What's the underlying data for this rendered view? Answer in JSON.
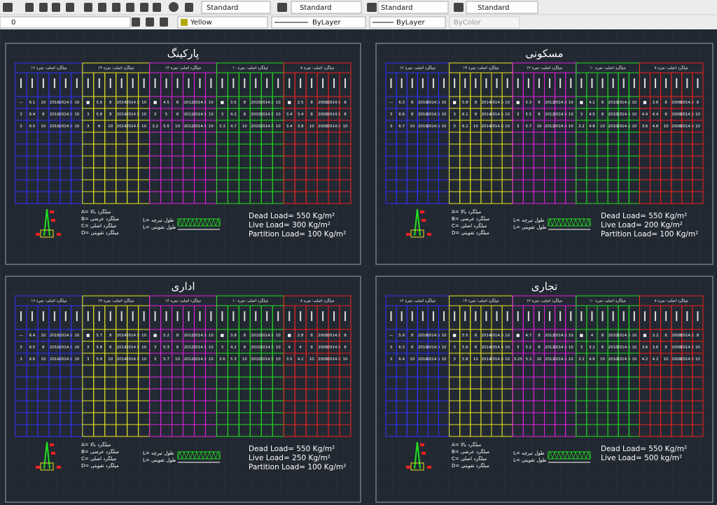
{
  "toolbar": {
    "text_style": "Standard",
    "dim_style": "Standard",
    "table_style": "Standard",
    "mleader_style": "Standard",
    "layer": "0",
    "color": "Yellow",
    "linetype": "ByLayer",
    "lineweight": "ByLayer",
    "plot_style": "ByColor"
  },
  "panels": [
    {
      "title": "پارکینگ",
      "loads": [
        "Dead Load= 550 Kg/m²",
        "Live Load= 300 Kg/m²",
        "Partition Load= 100 Kg/m²"
      ],
      "legend": [
        "A= میلگرد بالا",
        "B= میلگرد عرضی",
        "C= میلگرد اصلی",
        "D= میلگرد تقویتی"
      ],
      "lengths": [
        "L= طول تیرچه",
        "L= طول تقویتی"
      ],
      "groups": [
        {
          "header": "میلگرد اصلی: نمره ۱۶",
          "color": "#3030ff",
          "rows": [
            [
              "—",
              "6.1",
              "10",
              "2016",
              "2014.5",
              "10"
            ],
            [
              "3",
              "6.4",
              "8",
              "2016",
              "2014.5",
              "10"
            ],
            [
              "3",
              "6.5",
              "10",
              "2016",
              "2014.5",
              "10"
            ]
          ]
        },
        {
          "header": "میلگرد اصلی: نمره ۱۴",
          "color": "#e6e620",
          "rows": [
            [
              "■",
              "5.6",
              "8",
              "2014",
              "2014.5",
              "10"
            ],
            [
              "3",
              "5.8",
              "8",
              "2014",
              "2014.5",
              "10"
            ],
            [
              "3",
              "6",
              "10",
              "2014",
              "2014.5",
              "10"
            ]
          ]
        },
        {
          "header": "میلگرد اصلی: نمره ۱۲",
          "color": "#e020e0",
          "rows": [
            [
              "■",
              "4.5",
              "8",
              "2012",
              "2014.5",
              "10"
            ],
            [
              "3",
              "5",
              "8",
              "2012",
              "2014.5",
              "10"
            ],
            [
              "3.2",
              "5.5",
              "10",
              "2012",
              "2014.5",
              "10"
            ]
          ]
        },
        {
          "header": "میلگرد اصلی: نمره ۱۰",
          "color": "#20e020",
          "rows": [
            [
              "■",
              "3.5",
              "8",
              "2010",
              "2014.5",
              "10"
            ],
            [
              "3",
              "4.2",
              "8",
              "2010",
              "2014.5",
              "10"
            ],
            [
              "3.3",
              "4.7",
              "10",
              "2010",
              "2014.5",
              "10"
            ]
          ]
        },
        {
          "header": "میلگرد اصلی: نمره ۸",
          "color": "#f02020",
          "rows": [
            [
              "■",
              "2.5",
              "8",
              "2008",
              "2014.5",
              "8"
            ],
            [
              "3.4",
              "3.4",
              "8",
              "2008",
              "2014.5",
              "8"
            ],
            [
              "3.4",
              "3.8",
              "10",
              "2008",
              "2014.5",
              "10"
            ]
          ]
        }
      ]
    },
    {
      "title": "مسکونی",
      "loads": [
        "Dead Load= 550 Kg/m²",
        "Live Load= 200 Kg/m²",
        "Partition Load= 100 Kg/m²"
      ],
      "legend": [
        "A= میلگرد بالا",
        "B= میلگرد عرضی",
        "C= میلگرد اصلی",
        "D= میلگرد تقویتی"
      ],
      "lengths": [
        "L= طول تیرچه",
        "L= طول تقویتی"
      ],
      "groups": [
        {
          "header": "میلگرد اصلی: نمره ۱۶",
          "color": "#3030ff",
          "rows": [
            [
              "—",
              "6.3",
              "8",
              "2016",
              "2014.5",
              "10"
            ],
            [
              "3",
              "6.6",
              "8",
              "2016",
              "2014.5",
              "10"
            ],
            [
              "3",
              "6.7",
              "10",
              "2016",
              "2014.5",
              "10"
            ]
          ]
        },
        {
          "header": "میلگرد اصلی: نمره ۱۴",
          "color": "#e6e620",
          "rows": [
            [
              "■",
              "5.8",
              "8",
              "2014",
              "2014.5",
              "10"
            ],
            [
              "3",
              "6.1",
              "8",
              "2014",
              "2014.5",
              "10"
            ],
            [
              "3",
              "6.2",
              "10",
              "2014",
              "2014.5",
              "10"
            ]
          ]
        },
        {
          "header": "میلگرد اصلی: نمره ۱۲",
          "color": "#e020e0",
          "rows": [
            [
              "■",
              "5.3",
              "8",
              "2012",
              "2014.5",
              "10"
            ],
            [
              "3",
              "5.5",
              "8",
              "2012",
              "2014.5",
              "10"
            ],
            [
              "3",
              "5.7",
              "10",
              "2012",
              "2014.5",
              "10"
            ]
          ]
        },
        {
          "header": "میلگرد اصلی: نمره ۱۰",
          "color": "#20e020",
          "rows": [
            [
              "■",
              "4.1",
              "8",
              "2010",
              "2014.5",
              "10"
            ],
            [
              "3",
              "4.5",
              "8",
              "2010",
              "2014.5",
              "10"
            ],
            [
              "3.2",
              "4.8",
              "10",
              "2010",
              "2014.5",
              "10"
            ]
          ]
        },
        {
          "header": "میلگرد اصلی: نمره ۸",
          "color": "#f02020",
          "rows": [
            [
              "■",
              "3.6",
              "8",
              "2008",
              "2014.5",
              "8"
            ],
            [
              "4.4",
              "4.4",
              "8",
              "2008",
              "2014.5",
              "10"
            ],
            [
              "3.6",
              "4.8",
              "10",
              "2008",
              "2014.5",
              "10"
            ]
          ]
        }
      ]
    },
    {
      "title": "اداری",
      "loads": [
        "Dead Load= 550 Kg/m²",
        "Live Load= 250 Kg/m²",
        "Partition Load= 100 Kg/m²"
      ],
      "legend": [
        "A= میلگرد بالا",
        "B= میلگرد عرضی",
        "C= میلگرد اصلی",
        "D= میلگرد تقویتی"
      ],
      "lengths": [
        "L= طول تیرچه",
        "L= طول تقویتی"
      ],
      "groups": [
        {
          "header": "میلگرد اصلی: نمره ۱۶",
          "color": "#3030ff",
          "rows": [
            [
              "—",
              "6.4",
              "10",
              "2016",
              "2014.5",
              "10"
            ],
            [
              "3",
              "6.5",
              "8",
              "2016",
              "2014.5",
              "10"
            ],
            [
              "3",
              "6.6",
              "10",
              "2016",
              "2014.5",
              "10"
            ]
          ]
        },
        {
          "header": "میلگرد اصلی: نمره ۱۴",
          "color": "#e6e620",
          "rows": [
            [
              "■",
              "5.7",
              "8",
              "2014",
              "2014.5",
              "10"
            ],
            [
              "3",
              "5.8",
              "8",
              "2014",
              "2014.5",
              "10"
            ],
            [
              "3",
              "5.9",
              "10",
              "2014",
              "2014.5",
              "10"
            ]
          ]
        },
        {
          "header": "میلگرد اصلی: نمره ۱۲",
          "color": "#e020e0",
          "rows": [
            [
              "■",
              "5.2",
              "8",
              "2012",
              "2014.5",
              "10"
            ],
            [
              "3",
              "5.3",
              "8",
              "2012",
              "2014.5",
              "10"
            ],
            [
              "3",
              "5.7",
              "10",
              "2012",
              "2014.5",
              "10"
            ]
          ]
        },
        {
          "header": "میلگرد اصلی: نمره ۱۰",
          "color": "#20e020",
          "rows": [
            [
              "■",
              "3.8",
              "8",
              "2010",
              "2014.5",
              "10"
            ],
            [
              "3",
              "4.2",
              "8",
              "2010",
              "2014.5",
              "10"
            ],
            [
              "3.6",
              "5.3",
              "10",
              "2010",
              "2014.5",
              "10"
            ]
          ]
        },
        {
          "header": "میلگرد اصلی: نمره ۸",
          "color": "#f02020",
          "rows": [
            [
              "■",
              "2.8",
              "8",
              "2008",
              "2014.5",
              "8"
            ],
            [
              "4",
              "4",
              "8",
              "2008",
              "2014.5",
              "8"
            ],
            [
              "3.5",
              "4.2",
              "10",
              "2008",
              "2014.5",
              "10"
            ]
          ]
        }
      ]
    },
    {
      "title": "تجاری",
      "loads": [
        "Dead Load= 550 Kg/m²",
        "Live Load= 500 kg/m²"
      ],
      "legend": [
        "A= میلگرد بالا",
        "B= میلگرد عرضی",
        "C= میلگرد اصلی",
        "D= میلگرد تقویتی"
      ],
      "lengths": [
        "L= طول تیرچه",
        "L= طول تقویتی"
      ],
      "groups": [
        {
          "header": "میلگرد اصلی: نمره ۱۶",
          "color": "#3030ff",
          "rows": [
            [
              "—",
              "5.9",
              "8",
              "2016",
              "2014.5",
              "10"
            ],
            [
              "3",
              "6.3",
              "8",
              "2016",
              "2014.5",
              "10"
            ],
            [
              "3",
              "6.4",
              "10",
              "2016",
              "2014.5",
              "10"
            ]
          ]
        },
        {
          "header": "میلگرد اصلی: نمره ۱۴",
          "color": "#e6e620",
          "rows": [
            [
              "■",
              "5.5",
              "8",
              "2014",
              "2014.5",
              "10"
            ],
            [
              "3",
              "5.6",
              "8",
              "2014",
              "2014.5",
              "10"
            ],
            [
              "3",
              "5.8",
              "10",
              "2014",
              "2014.5",
              "10"
            ]
          ]
        },
        {
          "header": "میلگرد اصلی: نمره ۱۲",
          "color": "#e020e0",
          "rows": [
            [
              "■",
              "4.7",
              "8",
              "2012",
              "2014.5",
              "10"
            ],
            [
              "3",
              "5.2",
              "8",
              "2012",
              "2014.5",
              "10"
            ],
            [
              "3.25",
              "5.3",
              "10",
              "2012",
              "2014.5",
              "10"
            ]
          ]
        },
        {
          "header": "میلگرد اصلی: نمره ۱۰",
          "color": "#20e020",
          "rows": [
            [
              "■",
              "4",
              "8",
              "2010",
              "2014.5",
              "10"
            ],
            [
              "3",
              "3.2",
              "8",
              "2010",
              "2014.5",
              "10"
            ],
            [
              "3.2",
              "4.6",
              "10",
              "2010",
              "2014.5",
              "10"
            ]
          ]
        },
        {
          "header": "میلگرد اصلی: نمره ۸",
          "color": "#f02020",
          "rows": [
            [
              "■",
              "3.2",
              "8",
              "2008",
              "2014.5",
              "8"
            ],
            [
              "3.6",
              "3.6",
              "8",
              "2008",
              "2014.5",
              "10"
            ],
            [
              "4.2",
              "4.2",
              "10",
              "2008",
              "2014.5",
              "10"
            ]
          ]
        }
      ]
    }
  ]
}
